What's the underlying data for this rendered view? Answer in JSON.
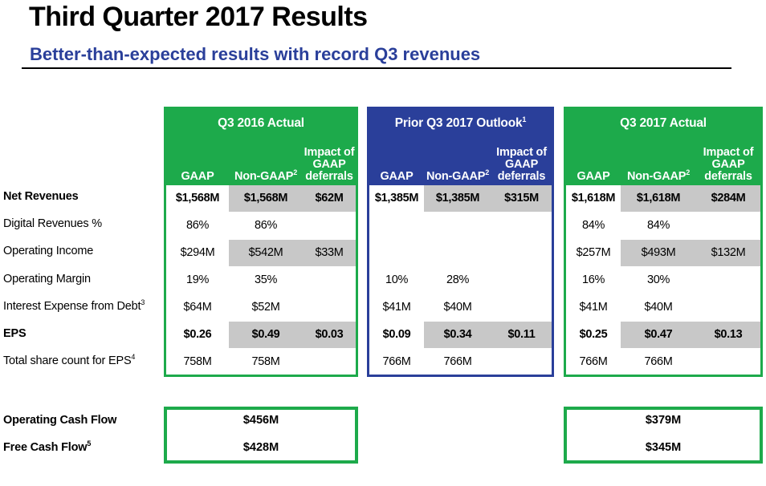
{
  "header": {
    "title": "Third Quarter 2017 Results",
    "subtitle": "Better-than-expected results with record Q3 revenues"
  },
  "rows": [
    {
      "label": "Net Revenues",
      "sup": "",
      "bold": true
    },
    {
      "label": "Digital Revenues %",
      "sup": "",
      "bold": false
    },
    {
      "label": "Operating Income",
      "sup": "",
      "bold": false
    },
    {
      "label": "Operating Margin",
      "sup": "",
      "bold": false
    },
    {
      "label": "Interest Expense from Debt",
      "sup": "3",
      "bold": false
    },
    {
      "label": "EPS",
      "sup": "",
      "bold": true
    },
    {
      "label": "Total share count for EPS",
      "sup": "4",
      "bold": false
    }
  ],
  "columns": {
    "gaap": "GAAP",
    "non_gaap": "Non-GAAP",
    "non_gaap_sup": "2",
    "impact_line1": "Impact of",
    "impact_line2": "GAAP",
    "impact_line3": "deferrals"
  },
  "panels": [
    {
      "title": "Q3 2016 Actual",
      "title_sup": "",
      "color": "#1daa4b",
      "values": [
        [
          "$1,568M",
          "$1,568M",
          "$62M"
        ],
        [
          "86%",
          "86%",
          ""
        ],
        [
          "$294M",
          "$542M",
          "$33M"
        ],
        [
          "19%",
          "35%",
          ""
        ],
        [
          "$64M",
          "$52M",
          ""
        ],
        [
          "$0.26",
          "$0.49",
          "$0.03"
        ],
        [
          "758M",
          "758M",
          ""
        ]
      ]
    },
    {
      "title": "Prior Q3 2017 Outlook",
      "title_sup": "1",
      "color": "#2a3f9a",
      "values": [
        [
          "$1,385M",
          "$1,385M",
          "$315M"
        ],
        [
          "",
          "",
          ""
        ],
        [
          "",
          "",
          ""
        ],
        [
          "10%",
          "28%",
          ""
        ],
        [
          "$41M",
          "$40M",
          ""
        ],
        [
          "$0.09",
          "$0.34",
          "$0.11"
        ],
        [
          "766M",
          "766M",
          ""
        ]
      ]
    },
    {
      "title": "Q3 2017 Actual",
      "title_sup": "",
      "color": "#1daa4b",
      "values": [
        [
          "$1,618M",
          "$1,618M",
          "$284M"
        ],
        [
          "84%",
          "84%",
          ""
        ],
        [
          "$257M",
          "$493M",
          "$132M"
        ],
        [
          "16%",
          "30%",
          ""
        ],
        [
          "$41M",
          "$40M",
          ""
        ],
        [
          "$0.25",
          "$0.47",
          "$0.13"
        ],
        [
          "766M",
          "766M",
          ""
        ]
      ]
    }
  ],
  "cash_flow": {
    "labels": [
      {
        "label": "Operating Cash Flow",
        "sup": ""
      },
      {
        "label": "Free Cash Flow",
        "sup": "5"
      }
    ],
    "q3_2016": [
      "$456M",
      "$428M"
    ],
    "q3_2017": [
      "$379M",
      "$345M"
    ]
  }
}
